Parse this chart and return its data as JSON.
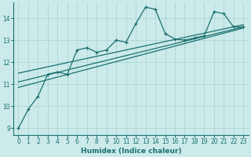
{
  "xlabel": "Humidex (Indice chaleur)",
  "ylabel": "",
  "background_color": "#cceaea",
  "line_color": "#1a7070",
  "grid_color": "#b0d8d8",
  "xlim": [
    -0.5,
    23.5
  ],
  "ylim": [
    8.7,
    14.7
  ],
  "xticks": [
    0,
    1,
    2,
    3,
    4,
    5,
    6,
    7,
    8,
    9,
    10,
    11,
    12,
    13,
    14,
    15,
    16,
    17,
    18,
    19,
    20,
    21,
    22,
    23
  ],
  "yticks": [
    9,
    10,
    11,
    12,
    13,
    14
  ],
  "main_x": [
    0,
    1,
    2,
    3,
    4,
    5,
    6,
    7,
    8,
    9,
    10,
    11,
    12,
    13,
    14,
    15,
    16,
    17,
    18,
    19,
    20,
    21,
    22,
    23
  ],
  "main_y": [
    9.0,
    9.85,
    10.45,
    11.45,
    11.55,
    11.45,
    12.55,
    12.65,
    12.45,
    12.55,
    13.0,
    12.9,
    13.75,
    14.5,
    14.4,
    13.3,
    13.05,
    13.0,
    13.1,
    13.2,
    14.3,
    14.2,
    13.6,
    13.6
  ],
  "line2_x": [
    0,
    23
  ],
  "line2_y": [
    10.85,
    13.55
  ],
  "line3_x": [
    0,
    23
  ],
  "line3_y": [
    11.1,
    13.6
  ],
  "line4_x": [
    0,
    23
  ],
  "line4_y": [
    11.5,
    13.7
  ]
}
